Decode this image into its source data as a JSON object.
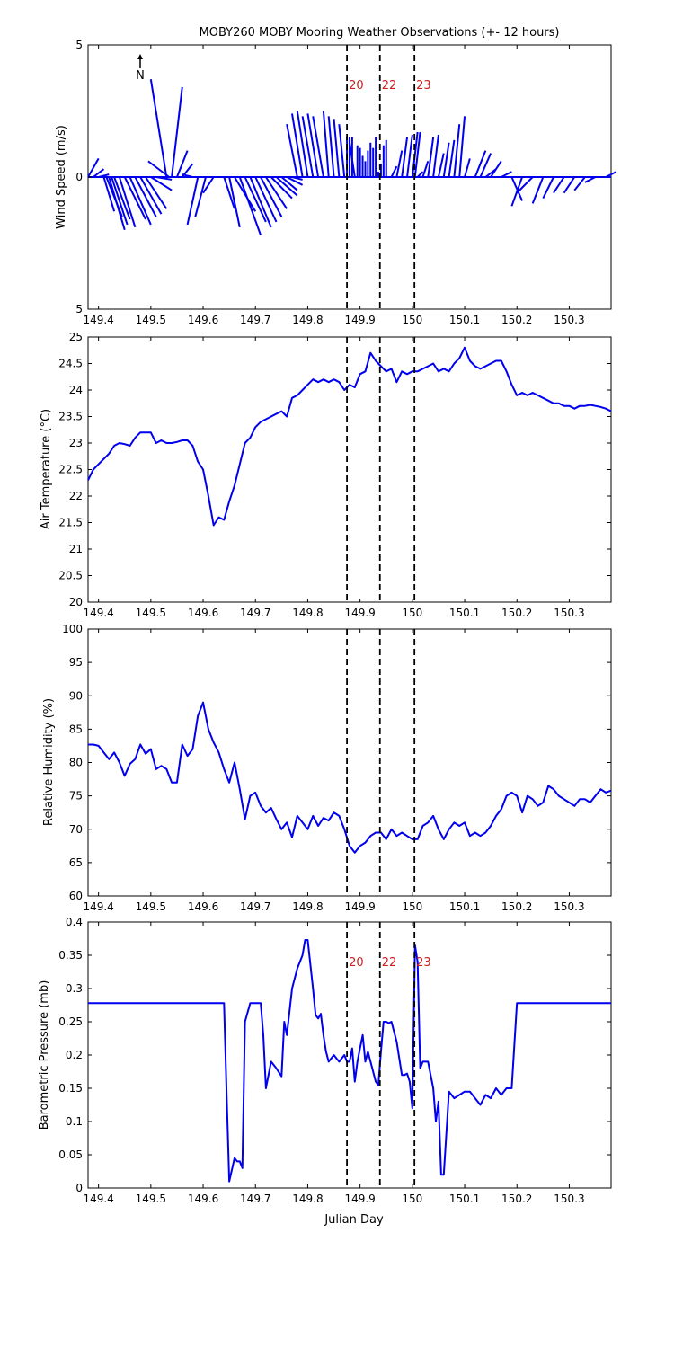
{
  "figure_title": "MOBY260 MOBY Mooring Weather Observations (+- 12 hours)",
  "north_label": "N",
  "xlabel": "Julian Day",
  "colors": {
    "series": "#0000ee",
    "marker_text": "#cc2020",
    "axis": "#000000",
    "marker_line": "#000000"
  },
  "chart_data": [
    {
      "type": "line",
      "subtype": "wind-vector-stick",
      "ylabel": "Wind Speed (m/s)",
      "ytick_labels": [
        "5",
        "0",
        "5"
      ],
      "ylim": [
        -5,
        5
      ],
      "xlim": [
        149.38,
        150.38
      ],
      "xticks": [
        "149.4",
        "149.5",
        "149.6",
        "149.7",
        "149.8",
        "149.9",
        "150",
        "150.1",
        "150.2",
        "150.3"
      ],
      "markers": [
        {
          "x": 149.875,
          "label": "20"
        },
        {
          "x": 149.938,
          "label": "22"
        },
        {
          "x": 150.004,
          "label": "23"
        }
      ],
      "series": [
        {
          "x": [
            149.38,
            149.39,
            149.4,
            149.41,
            149.415,
            149.42,
            149.425,
            149.43,
            149.44,
            149.45,
            149.46,
            149.47,
            149.48,
            149.49,
            149.5,
            149.51,
            149.53,
            149.535,
            149.54,
            149.55,
            149.56,
            149.58,
            149.59,
            149.605,
            149.62,
            149.64,
            149.65,
            149.66,
            149.67,
            149.68,
            149.69,
            149.7,
            149.71,
            149.72,
            149.73,
            149.74,
            149.75,
            149.76,
            149.77,
            149.78,
            149.79,
            149.8,
            149.81,
            149.82,
            149.83,
            149.84,
            149.85,
            149.86,
            149.87,
            149.875,
            149.88,
            149.885,
            149.89,
            149.895,
            149.9,
            149.905,
            149.91,
            149.915,
            149.92,
            149.925,
            149.93,
            149.935,
            149.94,
            149.945,
            149.95,
            149.96,
            149.97,
            149.98,
            149.99,
            150.0,
            150.005,
            150.01,
            150.02,
            150.03,
            150.04,
            150.05,
            150.06,
            150.07,
            150.08,
            150.09,
            150.1,
            150.12,
            150.13,
            150.14,
            150.15,
            150.17,
            150.19,
            150.21,
            150.23,
            150.25,
            150.27,
            150.29,
            150.31,
            150.33,
            150.35,
            150.37
          ],
          "u": [
            0.02,
            0.02,
            0.02,
            0.02,
            0.03,
            0.03,
            0.03,
            0.03,
            0.03,
            0.04,
            0.04,
            0.04,
            0.04,
            0.04,
            0.04,
            0.03,
            -0.03,
            -0.04,
            0.02,
            0.02,
            0.02,
            -0.02,
            -0.02,
            -0.02,
            -0.02,
            0.02,
            0.02,
            0.04,
            0.04,
            0.04,
            0.04,
            0.04,
            0.04,
            0.04,
            0.04,
            0.04,
            0.03,
            0.03,
            0.02,
            -0.02,
            -0.02,
            -0.02,
            -0.02,
            -0.02,
            -0.02,
            -0.01,
            -0.01,
            -0.01,
            -0.01,
            0.0,
            0.0,
            0.0,
            -0.01,
            0.0,
            0.0,
            0.0,
            0.0,
            0.0,
            0.0,
            0.0,
            0.0,
            0.0,
            0.0,
            0.0,
            0.0,
            0.01,
            0.01,
            0.01,
            0.01,
            0.01,
            0.01,
            0.01,
            0.01,
            0.01,
            0.01,
            0.01,
            0.01,
            0.01,
            0.01,
            0.01,
            0.01,
            0.02,
            0.02,
            0.02,
            0.02,
            0.02,
            0.02,
            -0.02,
            -0.03,
            -0.02,
            -0.02,
            -0.02,
            -0.02,
            -0.02,
            -0.02,
            0.02
          ],
          "v": [
            0.7,
            0.3,
            0.1,
            -1.3,
            -1.5,
            -2.0,
            -1.8,
            -1.6,
            -1.9,
            -1.6,
            -1.8,
            -1.5,
            -1.4,
            -1.2,
            -0.5,
            -0.1,
            3.7,
            0.6,
            3.4,
            1.0,
            0.5,
            0.1,
            -1.8,
            -1.5,
            -0.6,
            -1.2,
            -1.9,
            -1.3,
            -2.2,
            -1.7,
            -1.9,
            -1.7,
            -1.5,
            -1.2,
            -0.8,
            -0.7,
            -0.5,
            -0.3,
            -0.1,
            2.0,
            2.4,
            2.5,
            2.3,
            2.4,
            2.3,
            2.5,
            2.3,
            2.2,
            2.0,
            1.5,
            1.5,
            1.5,
            1.3,
            1.2,
            1.1,
            0.8,
            0.6,
            1.0,
            1.3,
            1.1,
            1.5,
            0.2,
            0.5,
            1.2,
            1.4,
            0.4,
            1.0,
            1.5,
            1.6,
            1.7,
            1.7,
            0.2,
            0.6,
            1.5,
            1.6,
            0.9,
            1.3,
            1.4,
            2.0,
            2.3,
            0.7,
            1.0,
            0.9,
            0.3,
            0.6,
            0.2,
            -0.9,
            -1.1,
            -0.6,
            -1.0,
            -0.8,
            -0.6,
            -0.6,
            -0.5,
            -0.2,
            0.2
          ]
        }
      ]
    },
    {
      "type": "line",
      "ylabel": "Air Temperature (°C)",
      "ylim": [
        20,
        25
      ],
      "yticks": [
        "20",
        "20.5",
        "21",
        "21.5",
        "22",
        "22.5",
        "23",
        "23.5",
        "24",
        "24.5",
        "25"
      ],
      "xlim": [
        149.38,
        150.38
      ],
      "xticks": [
        "149.4",
        "149.5",
        "149.6",
        "149.7",
        "149.8",
        "149.9",
        "150",
        "150.1",
        "150.2",
        "150.3"
      ],
      "markers": [
        {
          "x": 149.875,
          "label": ""
        },
        {
          "x": 149.938,
          "label": ""
        },
        {
          "x": 150.004,
          "label": ""
        }
      ],
      "series": [
        {
          "x": [
            149.38,
            149.39,
            149.4,
            149.42,
            149.43,
            149.44,
            149.45,
            149.46,
            149.47,
            149.48,
            149.49,
            149.5,
            149.51,
            149.52,
            149.53,
            149.54,
            149.55,
            149.56,
            149.57,
            149.58,
            149.59,
            149.6,
            149.61,
            149.62,
            149.63,
            149.64,
            149.65,
            149.66,
            149.67,
            149.68,
            149.69,
            149.7,
            149.71,
            149.72,
            149.73,
            149.74,
            149.75,
            149.76,
            149.77,
            149.78,
            149.79,
            149.8,
            149.81,
            149.82,
            149.83,
            149.84,
            149.85,
            149.86,
            149.87,
            149.88,
            149.89,
            149.9,
            149.91,
            149.92,
            149.93,
            149.94,
            149.95,
            149.96,
            149.97,
            149.98,
            149.99,
            150.0,
            150.01,
            150.02,
            150.03,
            150.04,
            150.05,
            150.06,
            150.07,
            150.08,
            150.09,
            150.1,
            150.11,
            150.12,
            150.13,
            150.14,
            150.15,
            150.16,
            150.17,
            150.18,
            150.19,
            150.2,
            150.21,
            150.22,
            150.23,
            150.24,
            150.25,
            150.26,
            150.27,
            150.28,
            150.29,
            150.3,
            150.31,
            150.32,
            150.33,
            150.34,
            150.35,
            150.36,
            150.37,
            150.38
          ],
          "values": [
            22.3,
            22.5,
            22.6,
            22.8,
            22.95,
            23.0,
            22.98,
            22.95,
            23.1,
            23.2,
            23.2,
            23.2,
            23.0,
            23.05,
            23.0,
            23.0,
            23.02,
            23.05,
            23.05,
            22.95,
            22.65,
            22.5,
            22.0,
            21.45,
            21.6,
            21.55,
            21.9,
            22.2,
            22.6,
            23.0,
            23.1,
            23.3,
            23.4,
            23.45,
            23.5,
            23.55,
            23.6,
            23.5,
            23.85,
            23.9,
            24.0,
            24.1,
            24.2,
            24.15,
            24.2,
            24.15,
            24.2,
            24.15,
            24.0,
            24.1,
            24.05,
            24.3,
            24.35,
            24.7,
            24.55,
            24.45,
            24.35,
            24.4,
            24.15,
            24.35,
            24.3,
            24.35,
            24.35,
            24.4,
            24.45,
            24.5,
            24.35,
            24.4,
            24.35,
            24.5,
            24.6,
            24.8,
            24.55,
            24.45,
            24.4,
            24.45,
            24.5,
            24.55,
            24.55,
            24.35,
            24.1,
            23.9,
            23.95,
            23.9,
            23.95,
            23.9,
            23.85,
            23.8,
            23.75,
            23.75,
            23.7,
            23.7,
            23.65,
            23.7,
            23.7,
            23.72,
            23.7,
            23.68,
            23.65,
            23.6
          ]
        }
      ]
    },
    {
      "type": "line",
      "ylabel": "Relative Humidity (%)",
      "ylim": [
        60,
        100
      ],
      "yticks": [
        "60",
        "65",
        "70",
        "75",
        "80",
        "85",
        "90",
        "95",
        "100"
      ],
      "xlim": [
        149.38,
        150.38
      ],
      "xticks": [
        "149.4",
        "149.5",
        "149.6",
        "149.7",
        "149.8",
        "149.9",
        "150",
        "150.1",
        "150.2",
        "150.3"
      ],
      "markers": [
        {
          "x": 149.875,
          "label": ""
        },
        {
          "x": 149.938,
          "label": ""
        },
        {
          "x": 150.004,
          "label": ""
        }
      ],
      "series": [
        {
          "x": [
            149.38,
            149.39,
            149.4,
            149.41,
            149.42,
            149.43,
            149.44,
            149.45,
            149.46,
            149.47,
            149.48,
            149.49,
            149.5,
            149.51,
            149.52,
            149.53,
            149.54,
            149.55,
            149.56,
            149.57,
            149.58,
            149.59,
            149.6,
            149.61,
            149.62,
            149.63,
            149.64,
            149.65,
            149.66,
            149.67,
            149.68,
            149.69,
            149.7,
            149.71,
            149.72,
            149.73,
            149.74,
            149.75,
            149.76,
            149.77,
            149.78,
            149.79,
            149.8,
            149.81,
            149.82,
            149.83,
            149.84,
            149.85,
            149.86,
            149.87,
            149.88,
            149.89,
            149.9,
            149.91,
            149.92,
            149.93,
            149.94,
            149.95,
            149.96,
            149.97,
            149.98,
            149.99,
            150.0,
            150.01,
            150.02,
            150.03,
            150.04,
            150.05,
            150.06,
            150.07,
            150.08,
            150.09,
            150.1,
            150.11,
            150.12,
            150.13,
            150.14,
            150.15,
            150.16,
            150.17,
            150.18,
            150.19,
            150.2,
            150.21,
            150.22,
            150.23,
            150.24,
            150.25,
            150.26,
            150.27,
            150.28,
            150.29,
            150.3,
            150.31,
            150.32,
            150.33,
            150.34,
            150.35,
            150.36,
            150.37,
            150.38
          ],
          "values": [
            82.7,
            82.7,
            82.5,
            81.5,
            80.5,
            81.5,
            80.0,
            78.0,
            79.8,
            80.5,
            82.7,
            81.3,
            82.0,
            79.0,
            79.5,
            79.0,
            77.0,
            77.0,
            82.7,
            81.0,
            82.0,
            87.0,
            89.0,
            85.0,
            83.0,
            81.5,
            79.0,
            77.0,
            80.0,
            76.0,
            71.5,
            75.0,
            75.5,
            73.5,
            72.5,
            73.2,
            71.5,
            70.0,
            71.0,
            68.8,
            72.0,
            71.0,
            70.0,
            72.0,
            70.5,
            71.7,
            71.3,
            72.5,
            72.0,
            70.0,
            67.5,
            66.5,
            67.5,
            68.0,
            69.0,
            69.5,
            69.5,
            68.5,
            70.0,
            69.0,
            69.5,
            69.0,
            68.5,
            68.5,
            70.5,
            71.0,
            72.0,
            70.0,
            68.5,
            70.0,
            71.0,
            70.5,
            71.0,
            69.0,
            69.5,
            69.0,
            69.5,
            70.5,
            72.0,
            73.0,
            75.0,
            75.5,
            75.0,
            72.5,
            75.0,
            74.5,
            73.5,
            74.0,
            76.5,
            76.0,
            75.0,
            74.5,
            74.0,
            73.5,
            74.5,
            74.5,
            74.0,
            75.0,
            76.0,
            75.5,
            75.8
          ]
        }
      ]
    },
    {
      "type": "line",
      "ylabel": "Barometric Pressure (mb)",
      "ylim": [
        0,
        0.4
      ],
      "yticks": [
        "0",
        "0.05",
        "0.1",
        "0.15",
        "0.2",
        "0.25",
        "0.3",
        "0.35",
        "0.4"
      ],
      "xlim": [
        149.38,
        150.38
      ],
      "xticks": [
        "149.4",
        "149.5",
        "149.6",
        "149.7",
        "149.8",
        "149.9",
        "150",
        "150.1",
        "150.2",
        "150.3"
      ],
      "markers": [
        {
          "x": 149.875,
          "label": "20"
        },
        {
          "x": 149.938,
          "label": "22"
        },
        {
          "x": 150.004,
          "label": "23"
        }
      ],
      "series": [
        {
          "x": [
            149.38,
            149.64,
            149.645,
            149.65,
            149.66,
            149.665,
            149.67,
            149.675,
            149.68,
            149.69,
            149.7,
            149.71,
            149.715,
            149.72,
            149.73,
            149.74,
            149.75,
            149.755,
            149.76,
            149.77,
            149.78,
            149.79,
            149.795,
            149.8,
            149.81,
            149.815,
            149.82,
            149.825,
            149.83,
            149.835,
            149.84,
            149.85,
            149.855,
            149.86,
            149.87,
            149.875,
            149.88,
            149.885,
            149.89,
            149.895,
            149.9,
            149.905,
            149.91,
            149.915,
            149.92,
            149.93,
            149.935,
            149.94,
            149.945,
            149.95,
            149.955,
            149.96,
            149.97,
            149.98,
            149.985,
            149.99,
            149.995,
            150.0,
            150.005,
            150.01,
            150.015,
            150.02,
            150.03,
            150.04,
            150.045,
            150.05,
            150.055,
            150.06,
            150.07,
            150.08,
            150.09,
            150.1,
            150.11,
            150.12,
            150.13,
            150.14,
            150.15,
            150.16,
            150.17,
            150.18,
            150.19,
            150.2,
            150.21,
            150.38
          ],
          "values": [
            0.278,
            0.278,
            0.14,
            0.01,
            0.045,
            0.04,
            0.04,
            0.03,
            0.25,
            0.278,
            0.278,
            0.278,
            0.23,
            0.15,
            0.19,
            0.18,
            0.168,
            0.25,
            0.23,
            0.3,
            0.33,
            0.35,
            0.373,
            0.373,
            0.3,
            0.26,
            0.255,
            0.262,
            0.23,
            0.205,
            0.19,
            0.2,
            0.195,
            0.19,
            0.2,
            0.19,
            0.19,
            0.21,
            0.16,
            0.19,
            0.21,
            0.23,
            0.19,
            0.205,
            0.19,
            0.16,
            0.155,
            0.205,
            0.25,
            0.25,
            0.248,
            0.25,
            0.22,
            0.17,
            0.17,
            0.172,
            0.16,
            0.12,
            0.365,
            0.34,
            0.18,
            0.19,
            0.19,
            0.15,
            0.1,
            0.13,
            0.02,
            0.02,
            0.145,
            0.135,
            0.14,
            0.145,
            0.145,
            0.135,
            0.125,
            0.14,
            0.135,
            0.15,
            0.14,
            0.15,
            0.15,
            0.278,
            0.278,
            0.278
          ]
        }
      ]
    }
  ]
}
